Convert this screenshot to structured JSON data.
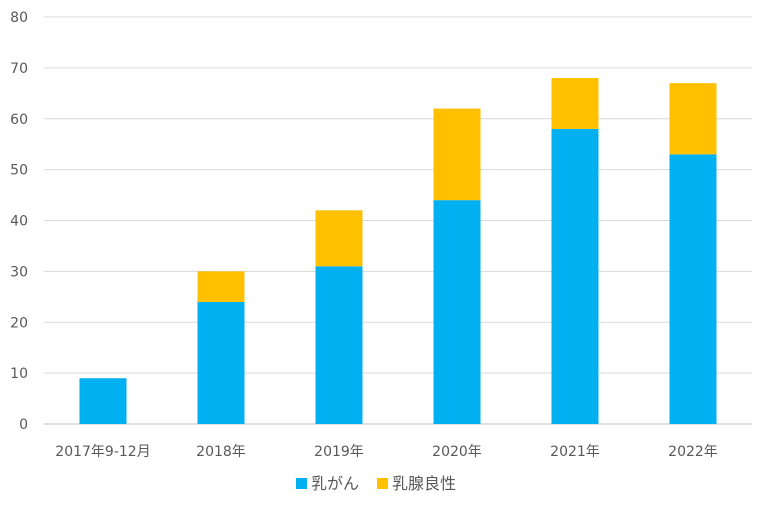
{
  "chart_data": {
    "type": "bar",
    "stacked": true,
    "categories": [
      "2017年9-12月",
      "2018年",
      "2019年",
      "2020年",
      "2021年",
      "2022年"
    ],
    "series": [
      {
        "name": "乳がん",
        "color": "#00B0F0",
        "values": [
          9,
          24,
          31,
          44,
          58,
          53
        ]
      },
      {
        "name": "乳腺良性",
        "color": "#FFC000",
        "values": [
          0,
          6,
          11,
          18,
          10,
          14
        ]
      }
    ],
    "ylim": [
      0,
      80
    ],
    "yticks": [
      0,
      10,
      20,
      30,
      40,
      50,
      60,
      70,
      80
    ],
    "grid": true,
    "legend_position": "bottom"
  }
}
